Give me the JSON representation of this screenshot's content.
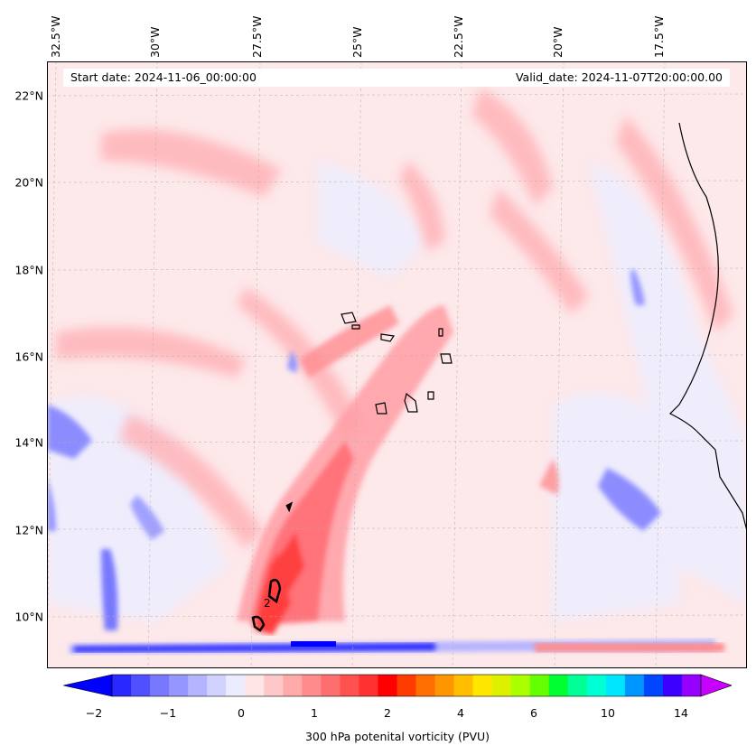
{
  "map": {
    "start_date": "Start date: 2024-11-06_00:00:00",
    "valid_date": "Valid_date: 2024-11-07T20:00:00.00",
    "longitude_labels": [
      "32.5°W",
      "30°W",
      "27.5°W",
      "25°W",
      "22.5°W",
      "20°W",
      "17.5°W"
    ],
    "latitude_labels": [
      "22°N",
      "20°N",
      "18°N",
      "16°N",
      "14°N",
      "12°N",
      "10°N"
    ],
    "contour_label": "2",
    "colorbar": {
      "label": "300 hPa potenital vorticity (PVU)",
      "ticks": [
        "−2",
        "−1",
        "0",
        "1",
        "2",
        "4",
        "6",
        "10",
        "14"
      ],
      "colors": [
        "#0000ff",
        "#2828ff",
        "#5050ff",
        "#7878ff",
        "#9696ff",
        "#b4b4ff",
        "#d2d2ff",
        "#ececff",
        "#ffe6e6",
        "#ffc8c8",
        "#ffaaaa",
        "#ff8c8c",
        "#ff6e6e",
        "#ff5050",
        "#ff3232",
        "#ff0000",
        "#ff3c00",
        "#ff6e00",
        "#ff9600",
        "#ffbe00",
        "#ffe600",
        "#dcf000",
        "#aaff00",
        "#64ff00",
        "#00ff32",
        "#00ff96",
        "#00ffd2",
        "#00e6ff",
        "#0096ff",
        "#0046ff",
        "#3c00ff",
        "#9600ff",
        "#c800ff"
      ]
    }
  }
}
